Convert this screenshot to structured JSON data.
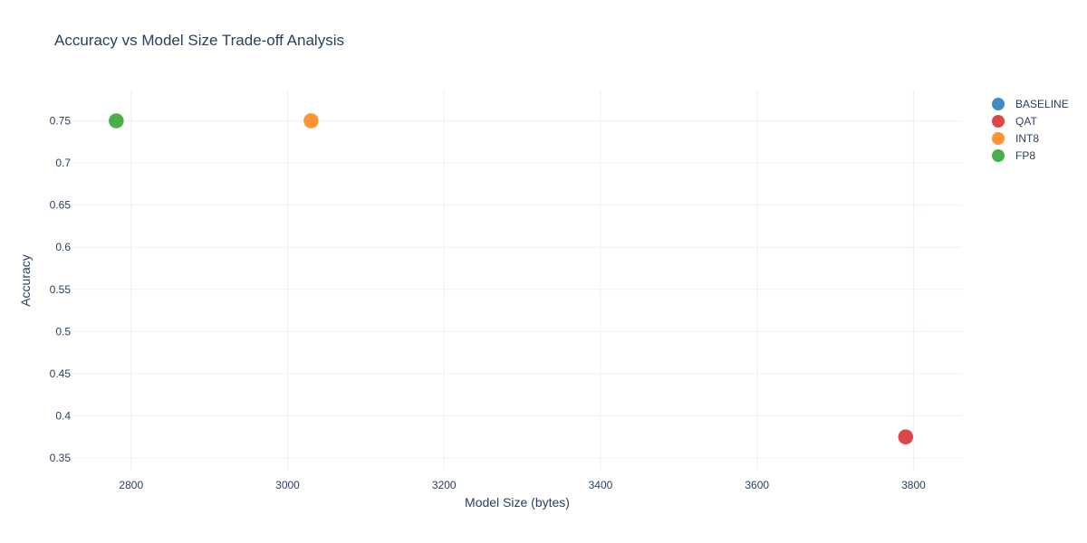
{
  "chart_data": {
    "type": "scatter",
    "title": "Accuracy vs Model Size Trade-off Analysis",
    "xlabel": "Model Size (bytes)",
    "ylabel": "Accuracy",
    "xlim": [
      2725,
      3862
    ],
    "ylim": [
      0.335,
      0.786
    ],
    "xticks": [
      2800,
      3000,
      3200,
      3400,
      3600,
      3800
    ],
    "yticks": [
      0.35,
      0.4,
      0.45,
      0.5,
      0.55,
      0.6,
      0.65,
      0.7,
      0.75
    ],
    "grid": true,
    "legend_position": "top-right",
    "series": [
      {
        "name": "BASELINE",
        "color": "#1f77b4",
        "points": []
      },
      {
        "name": "QAT",
        "color": "#d62728",
        "points": [
          {
            "x": 3790,
            "y": 0.375
          }
        ]
      },
      {
        "name": "INT8",
        "color": "#ff7f0e",
        "points": [
          {
            "x": 3030,
            "y": 0.75
          }
        ]
      },
      {
        "name": "FP8",
        "color": "#2ca02c",
        "points": [
          {
            "x": 2781,
            "y": 0.75
          }
        ]
      }
    ]
  }
}
